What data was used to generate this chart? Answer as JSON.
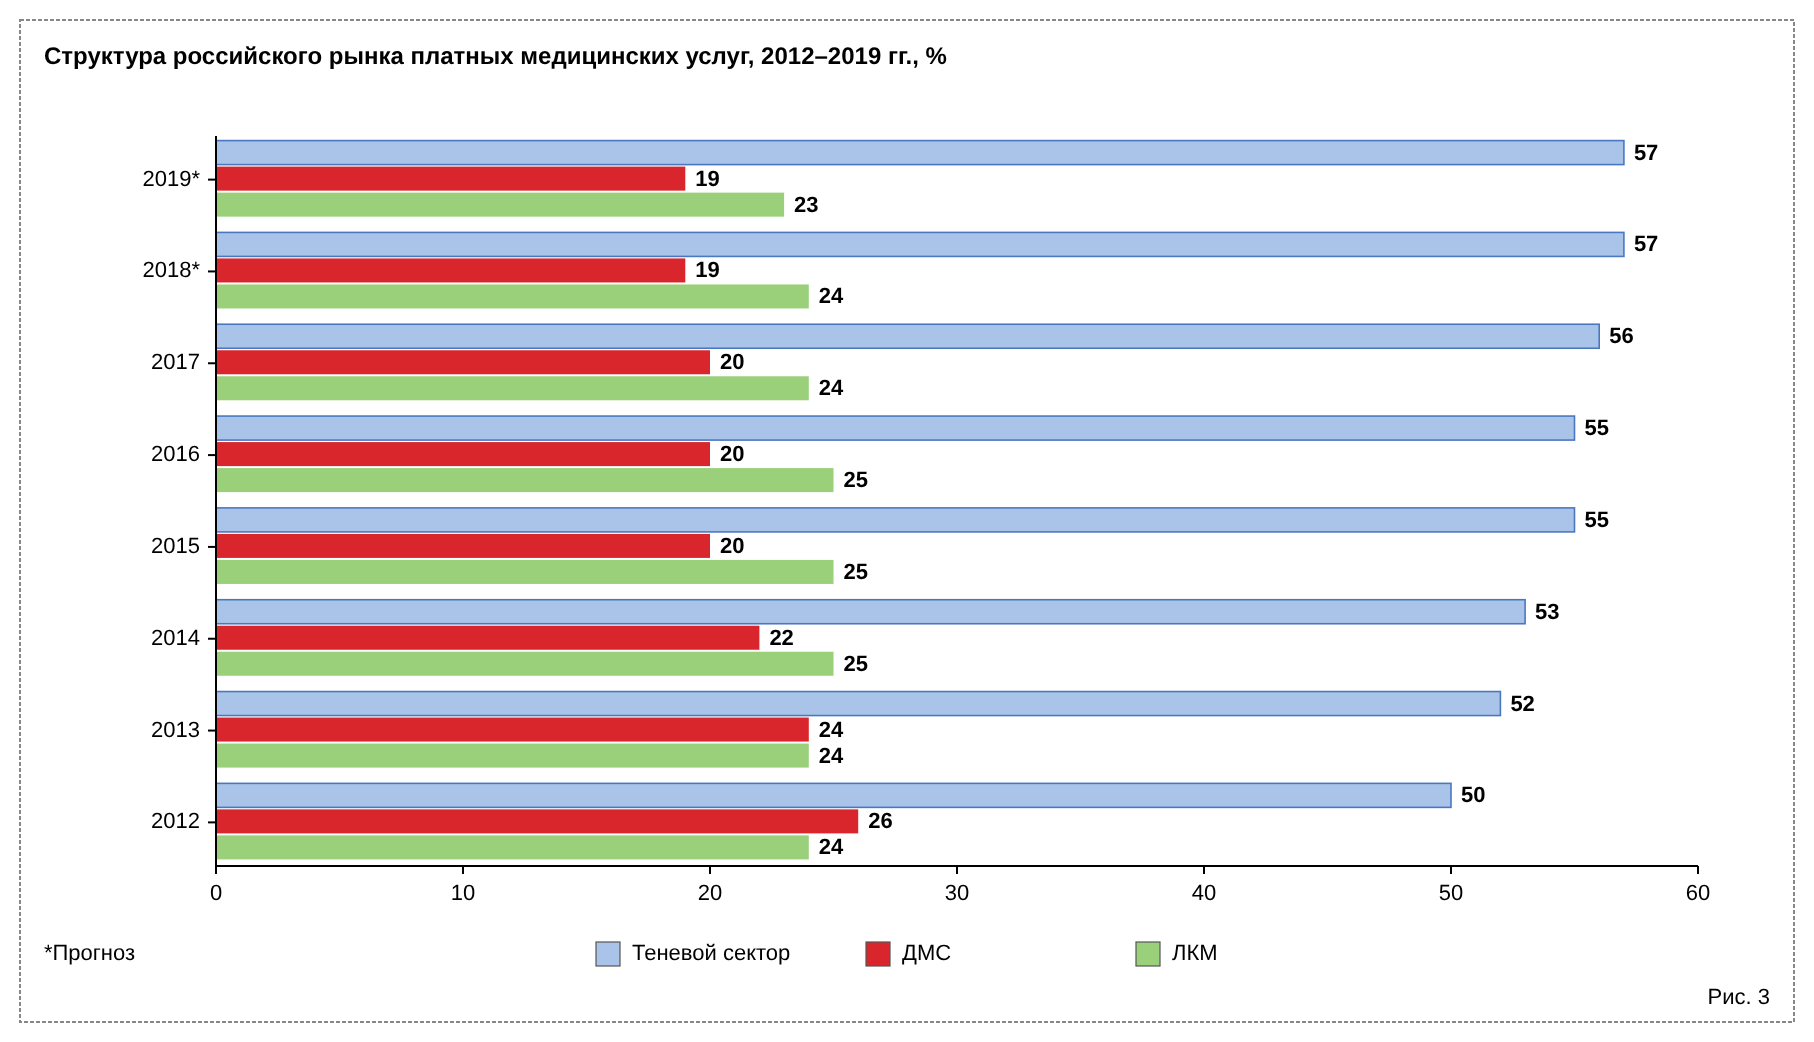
{
  "chart_data": {
    "type": "bar",
    "orientation": "horizontal",
    "title": "Структура российского рынка платных медицинских услуг, 2012–2019 гг., %",
    "categories": [
      "2019*",
      "2018*",
      "2017",
      "2016",
      "2015",
      "2014",
      "2013",
      "2012"
    ],
    "series": [
      {
        "name": "Теневой сектор",
        "color": "#a9c4e8",
        "values": [
          57,
          57,
          56,
          55,
          55,
          53,
          52,
          50
        ]
      },
      {
        "name": "ДМС",
        "color": "#d9262c",
        "values": [
          19,
          19,
          20,
          20,
          20,
          22,
          24,
          26
        ]
      },
      {
        "name": "ЛКМ",
        "color": "#9ad07a",
        "values": [
          23,
          24,
          24,
          25,
          25,
          25,
          24,
          24
        ]
      }
    ],
    "xlim": [
      0,
      60
    ],
    "xticks": [
      0,
      10,
      20,
      30,
      40,
      50,
      60
    ],
    "grid": false,
    "legend": "bottom",
    "data_labels": true,
    "annotations": [
      "*Прогноз",
      "Рис. 3"
    ]
  }
}
